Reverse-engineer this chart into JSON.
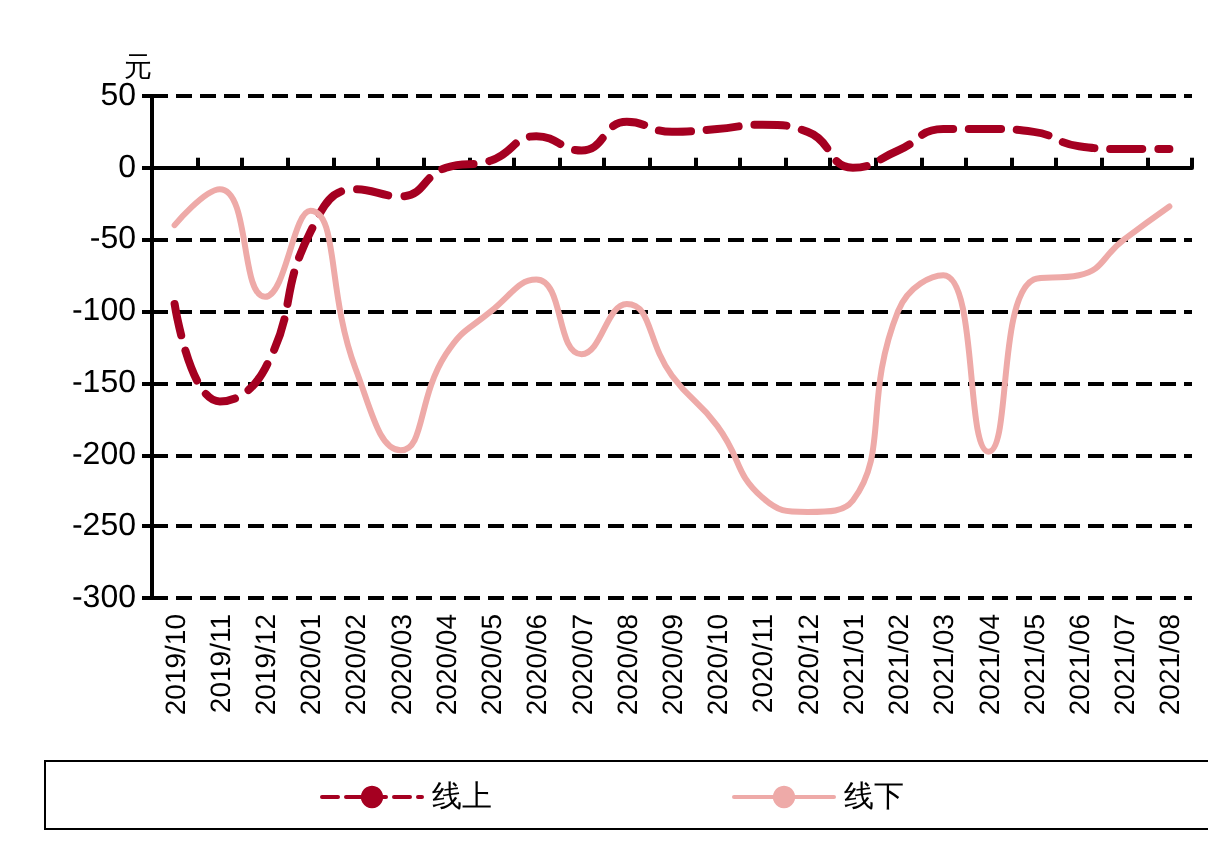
{
  "chart_data": {
    "type": "line",
    "ylabel": "元",
    "categories": [
      "2019/10",
      "2019/11",
      "2019/12",
      "2020/01",
      "2020/02",
      "2020/03",
      "2020/04",
      "2020/05",
      "2020/06",
      "2020/07",
      "2020/08",
      "2020/09",
      "2020/10",
      "2020/11",
      "2020/12",
      "2021/01",
      "2021/02",
      "2021/03",
      "2021/04",
      "2021/05",
      "2021/06",
      "2021/07",
      "2021/08"
    ],
    "series": [
      {
        "name": "线上",
        "color": "#a50021",
        "line_style": "dashed",
        "values": [
          -95,
          -163,
          -140,
          -45,
          -15,
          -20,
          0,
          5,
          22,
          12,
          32,
          25,
          27,
          30,
          25,
          0,
          12,
          27,
          27,
          25,
          15,
          13,
          13
        ]
      },
      {
        "name": "线下",
        "color": "#eeaaa8",
        "line_style": "solid",
        "values": [
          -40,
          -15,
          -90,
          -30,
          -140,
          -197,
          -130,
          -100,
          -78,
          -130,
          -95,
          -145,
          -180,
          -230,
          -240,
          -232,
          -100,
          -75,
          -198,
          -78,
          -75,
          -50,
          -27
        ]
      }
    ],
    "ylim": [
      -300,
      50
    ],
    "yticks": [
      -300,
      -250,
      -200,
      -150,
      -100,
      -50,
      0,
      50
    ],
    "grid": "y",
    "legend": "bottom",
    "marker": "none"
  }
}
